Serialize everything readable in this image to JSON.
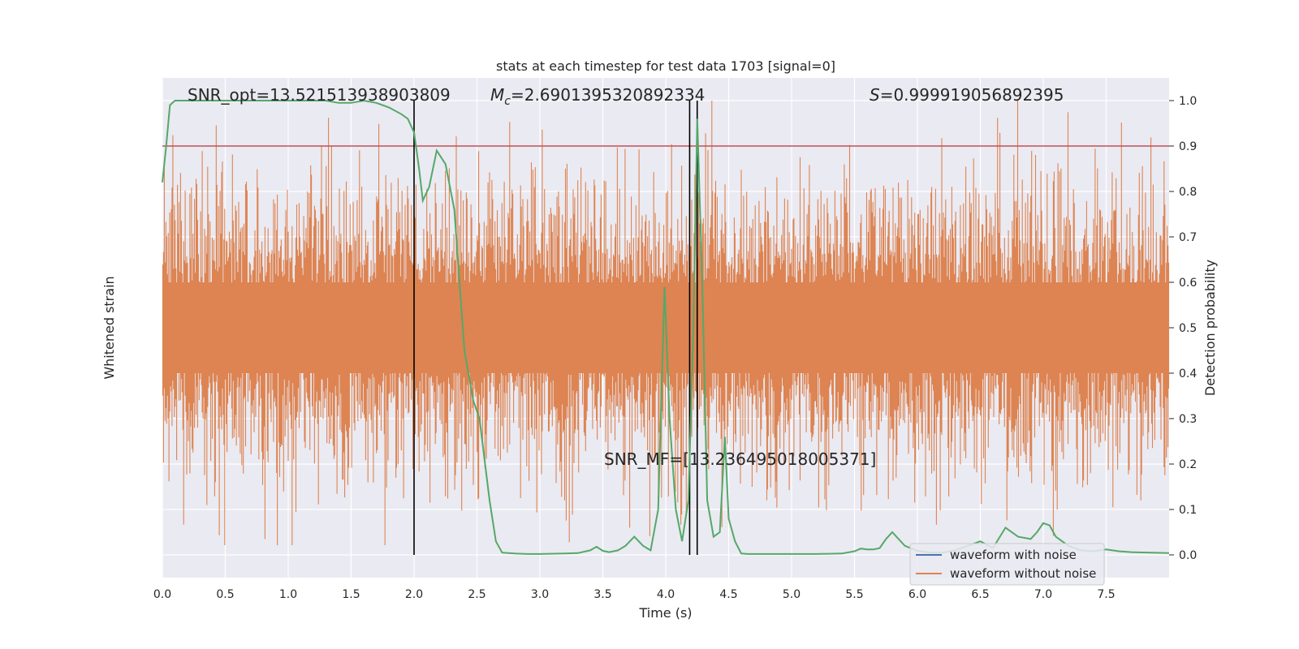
{
  "chart_data": {
    "type": "line",
    "title": "stats at each timestep for test data 1703 [signal=0]",
    "xlabel": "Time (s)",
    "ylabel_left": "Whitened strain",
    "ylabel_right": "Detection probability",
    "xlim": [
      0,
      8.0
    ],
    "ylim_right": [
      -0.05,
      1.05
    ],
    "x_ticks": [
      "0.0",
      "0.5",
      "1.0",
      "1.5",
      "2.0",
      "2.5",
      "3.0",
      "3.5",
      "4.0",
      "4.5",
      "5.0",
      "5.5",
      "6.0",
      "6.5",
      "7.0",
      "7.5"
    ],
    "x_tick_values": [
      0,
      0.5,
      1.0,
      1.5,
      2.0,
      2.5,
      3.0,
      3.5,
      4.0,
      4.5,
      5.0,
      5.5,
      6.0,
      6.5,
      7.0,
      7.5
    ],
    "y_ticks_right": [
      "0.0",
      "0.1",
      "0.2",
      "0.3",
      "0.4",
      "0.5",
      "0.6",
      "0.7",
      "0.8",
      "0.9",
      "1.0"
    ],
    "y_tick_values_right": [
      0,
      0.1,
      0.2,
      0.3,
      0.4,
      0.5,
      0.6,
      0.7,
      0.8,
      0.9,
      1.0
    ],
    "grid": true,
    "annotations": {
      "snr_opt": "SNR_opt=13.521513938903809",
      "mc_symbol": "M",
      "mc_sub": "c",
      "mc_value": "=2.6901395320892334",
      "s_symbol": "S",
      "s_value": "=0.999919056892395",
      "snr_mf": "SNR_MF=[13.236495018005371]"
    },
    "threshold": 0.9,
    "vlines": [
      2.0,
      4.19,
      4.25
    ],
    "legend": {
      "placement": "lower-right",
      "entries": [
        {
          "label": "waveform with noise",
          "color": "#4c72b0"
        },
        {
          "label": "waveform without noise",
          "color": "#dd8452"
        }
      ]
    },
    "series": [
      {
        "name": "waveform with noise",
        "color": "#4c72b0"
      },
      {
        "name": "waveform without noise",
        "color": "#dd8452",
        "style": "dense noise"
      },
      {
        "color": "#55a868",
        "x": [
          0,
          0.03,
          0.06,
          0.1,
          0.15,
          0.25,
          0.5,
          0.8,
          1.0,
          1.2,
          1.3,
          1.4,
          1.5,
          1.6,
          1.7,
          1.8,
          1.9,
          1.95,
          2.0,
          2.04,
          2.07,
          2.12,
          2.18,
          2.25,
          2.32,
          2.4,
          2.47,
          2.52,
          2.6,
          2.65,
          2.7,
          2.8,
          2.9,
          3.0,
          3.2,
          3.3,
          3.4,
          3.45,
          3.5,
          3.55,
          3.62,
          3.68,
          3.75,
          3.82,
          3.88,
          3.94,
          3.99,
          4.03,
          4.08,
          4.13,
          4.18,
          4.22,
          4.25,
          4.29,
          4.33,
          4.38,
          4.43,
          4.47,
          4.5,
          4.55,
          4.6,
          4.65,
          4.8,
          5.0,
          5.2,
          5.4,
          5.5,
          5.55,
          5.6,
          5.65,
          5.7,
          5.75,
          5.8,
          5.9,
          6.0,
          6.1,
          6.2,
          6.3,
          6.4,
          6.5,
          6.6,
          6.7,
          6.8,
          6.9,
          6.95,
          7.0,
          7.05,
          7.1,
          7.2,
          7.3,
          7.4,
          7.5,
          7.6,
          7.7,
          8.0
        ],
        "values": [
          0.82,
          0.9,
          0.99,
          1.0,
          1.0,
          1.0,
          1.0,
          1.0,
          1.0,
          1.0,
          1.0,
          0.995,
          0.995,
          1.0,
          0.995,
          0.985,
          0.97,
          0.96,
          0.93,
          0.85,
          0.78,
          0.81,
          0.89,
          0.86,
          0.76,
          0.45,
          0.34,
          0.3,
          0.12,
          0.03,
          0.005,
          0.003,
          0.002,
          0.002,
          0.003,
          0.004,
          0.01,
          0.018,
          0.009,
          0.006,
          0.01,
          0.02,
          0.04,
          0.02,
          0.01,
          0.1,
          0.59,
          0.3,
          0.1,
          0.03,
          0.12,
          0.5,
          0.96,
          0.6,
          0.12,
          0.04,
          0.05,
          0.26,
          0.08,
          0.03,
          0.003,
          0.002,
          0.002,
          0.002,
          0.002,
          0.003,
          0.008,
          0.014,
          0.012,
          0.012,
          0.015,
          0.035,
          0.05,
          0.02,
          0.009,
          0.005,
          0.005,
          0.01,
          0.02,
          0.03,
          0.015,
          0.06,
          0.04,
          0.035,
          0.05,
          0.07,
          0.065,
          0.04,
          0.02,
          0.01,
          0.008,
          0.012,
          0.008,
          0.006,
          0.004
        ]
      }
    ]
  }
}
